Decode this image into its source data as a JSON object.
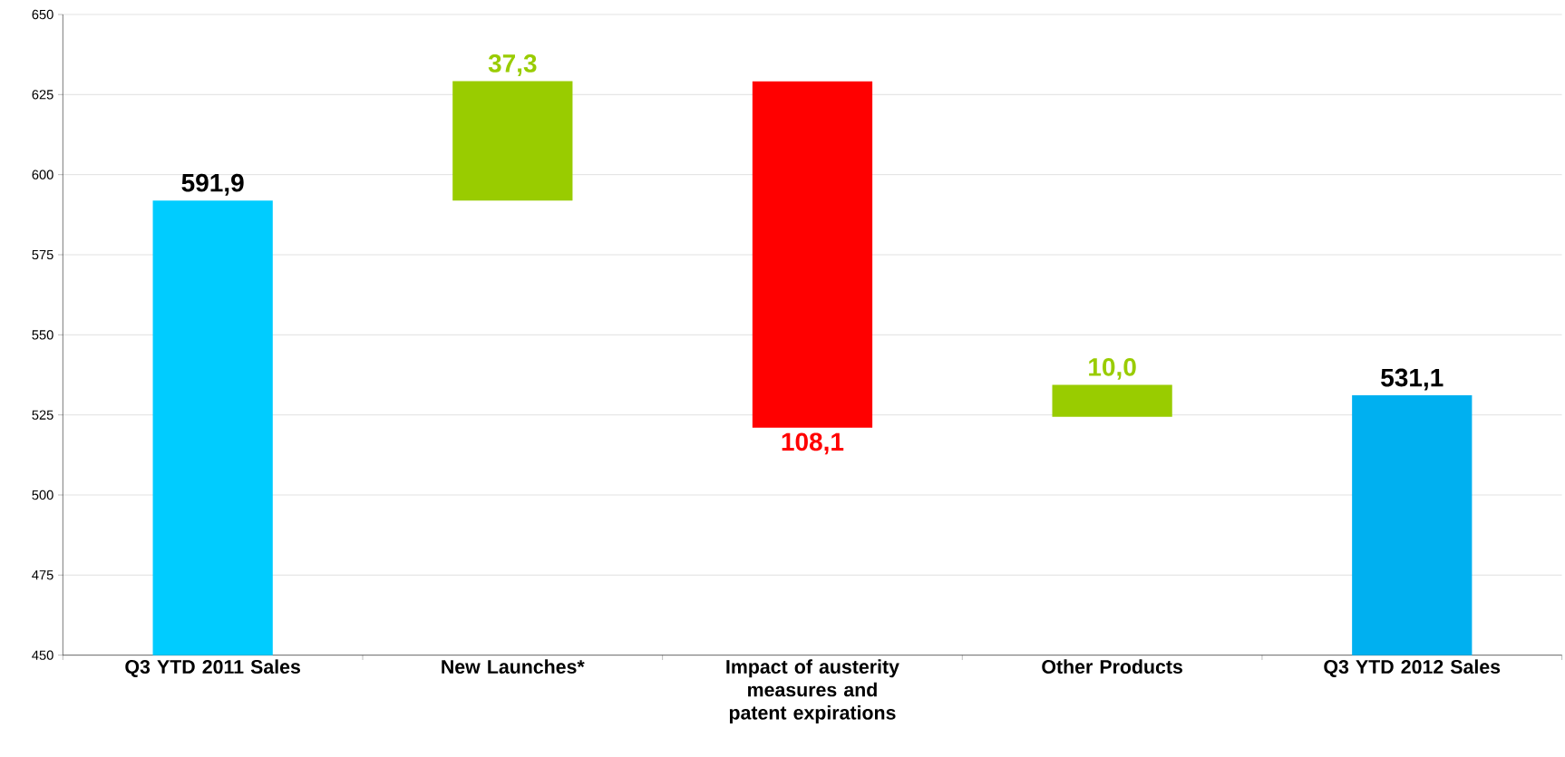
{
  "chart_data": {
    "type": "bar",
    "categories": [
      "Q3 YTD 2011 Sales",
      "New Launches*",
      "Impact of austerity measures and patent expirations",
      "Other Products",
      "Q3 YTD 2012 Sales"
    ],
    "values": [
      141.9,
      37.3,
      -108.1,
      10.0,
      81.1
    ],
    "base": [
      450,
      591.9,
      629.1,
      524.4,
      450
    ],
    "colors": [
      "#00ccff",
      "#99cc00",
      "#ff0000",
      "#99cc00",
      "#00b0f0"
    ],
    "value_labels": [
      "591,9",
      "37,3",
      "108,1",
      "10,0",
      "531,1"
    ],
    "ylim": [
      450,
      650
    ],
    "yticks": [
      450,
      475,
      500,
      525,
      550,
      575,
      600,
      625,
      650
    ],
    "grid": "y"
  }
}
